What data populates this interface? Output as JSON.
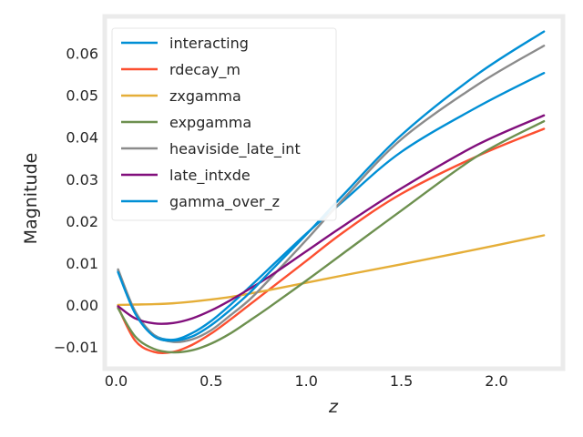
{
  "chart_data": {
    "type": "line",
    "xlabel": "z",
    "ylabel": "Magnitude",
    "xlim": [
      -0.06,
      2.35
    ],
    "ylim": [
      -0.0152,
      0.0688
    ],
    "xticks": [
      0.0,
      0.5,
      1.0,
      1.5,
      2.0
    ],
    "xtick_labels": [
      "0.0",
      "0.5",
      "1.0",
      "1.5",
      "2.0"
    ],
    "yticks": [
      -0.01,
      0.0,
      0.01,
      0.02,
      0.03,
      0.04,
      0.05,
      0.06
    ],
    "ytick_labels": [
      "−0.01",
      "0.00",
      "0.01",
      "0.02",
      "0.03",
      "0.04",
      "0.05",
      "0.06"
    ],
    "grid": false,
    "legend_position": "top-left",
    "series": [
      {
        "name": "interacting",
        "color": "#008fd5",
        "x": [
          0.01,
          0.1,
          0.2,
          0.3,
          0.4,
          0.5,
          0.6,
          0.7,
          0.8,
          1.0,
          1.2,
          1.5,
          1.9,
          2.25
        ],
        "y": [
          0.0082,
          -0.002,
          -0.0072,
          -0.0083,
          -0.0067,
          -0.0038,
          0.0,
          0.0042,
          0.0085,
          0.017,
          0.025,
          0.0365,
          0.0472,
          0.0553
        ]
      },
      {
        "name": "rdecay_m",
        "color": "#fc4f30",
        "x": [
          0.01,
          0.1,
          0.2,
          0.3,
          0.4,
          0.5,
          0.6,
          0.7,
          0.8,
          1.0,
          1.2,
          1.5,
          1.9,
          2.25
        ],
        "y": [
          -0.0005,
          -0.0085,
          -0.0112,
          -0.0112,
          -0.0095,
          -0.0068,
          -0.0035,
          0.0,
          0.0035,
          0.0105,
          0.0175,
          0.0265,
          0.0355,
          0.042
        ]
      },
      {
        "name": "zxgamma",
        "color": "#e5ae38",
        "x": [
          0.01,
          0.1,
          0.2,
          0.3,
          0.4,
          0.5,
          0.6,
          0.7,
          0.8,
          1.0,
          1.2,
          1.5,
          1.9,
          2.25
        ],
        "y": [
          0.0,
          0.0001,
          0.0002,
          0.0004,
          0.0008,
          0.0013,
          0.0019,
          0.0027,
          0.0035,
          0.0053,
          0.0071,
          0.0097,
          0.0133,
          0.0166
        ]
      },
      {
        "name": "expgamma",
        "color": "#6d904f",
        "x": [
          0.01,
          0.1,
          0.2,
          0.3,
          0.4,
          0.5,
          0.6,
          0.7,
          0.8,
          1.0,
          1.2,
          1.5,
          1.9,
          2.25
        ],
        "y": [
          -0.0008,
          -0.0075,
          -0.0105,
          -0.0113,
          -0.0108,
          -0.0092,
          -0.0068,
          -0.0038,
          -0.0007,
          0.0058,
          0.0125,
          0.0225,
          0.0355,
          0.0438
        ]
      },
      {
        "name": "heaviside_late_int",
        "color": "#8b8b8b",
        "x": [
          0.01,
          0.1,
          0.2,
          0.3,
          0.4,
          0.5,
          0.6,
          0.7,
          0.8,
          1.0,
          1.2,
          1.5,
          1.9,
          2.25
        ],
        "y": [
          0.0085,
          -0.0015,
          -0.0072,
          -0.0088,
          -0.0082,
          -0.006,
          -0.0025,
          0.0012,
          0.0058,
          0.0155,
          0.0255,
          0.0395,
          0.0525,
          0.0618
        ]
      },
      {
        "name": "late_intxde",
        "color": "#810f7c",
        "x": [
          0.01,
          0.1,
          0.2,
          0.3,
          0.4,
          0.5,
          0.6,
          0.7,
          0.8,
          1.0,
          1.2,
          1.5,
          1.9,
          2.25
        ],
        "y": [
          -0.0003,
          -0.0032,
          -0.0044,
          -0.0043,
          -0.0032,
          -0.0013,
          0.0011,
          0.0038,
          0.0066,
          0.0128,
          0.019,
          0.0278,
          0.0382,
          0.0452
        ]
      },
      {
        "name": "gamma_over_z",
        "color": "#008fd5",
        "x": [
          0.01,
          0.1,
          0.2,
          0.3,
          0.4,
          0.5,
          0.6,
          0.7,
          0.8,
          1.0,
          1.2,
          1.5,
          1.9,
          2.25
        ],
        "y": [
          0.0078,
          -0.002,
          -0.0075,
          -0.0085,
          -0.0075,
          -0.0048,
          -0.0012,
          0.0028,
          0.0075,
          0.0168,
          0.0265,
          0.0405,
          0.055,
          0.0652
        ]
      }
    ]
  }
}
